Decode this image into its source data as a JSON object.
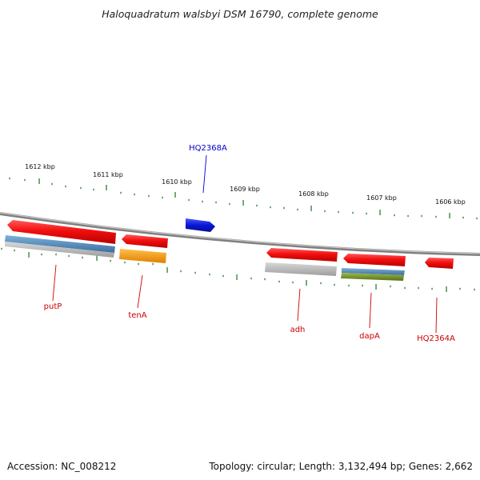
{
  "title": "Haloquadratum walsbyi DSM 16790, complete genome",
  "footer": {
    "accession": "Accession: NC_008212",
    "summary": "Topology: circular; Length: 3,132,494 bp; Genes: 2,662"
  },
  "scale": {
    "labels": [
      "1612 kbp",
      "1611 kbp",
      "1610 kbp",
      "1609 kbp",
      "1608 kbp",
      "1607 kbp",
      "1606 kbp"
    ],
    "tick_color": "#2e7d32"
  },
  "colors": {
    "backbone": "#8a8a8a",
    "gene_red": "#ee1111",
    "gene_blue": "#0a16d8",
    "label_red": "#cc0000",
    "label_blue": "#0000cc",
    "steel_blue": "#4f87b8",
    "grey": "#b9b9b9",
    "orange": "#f59a12",
    "olive": "#6f8f24"
  },
  "genes": [
    {
      "label": "putP",
      "strand": "reverse",
      "color": "red",
      "annotations": [
        "steel_blue",
        "grey"
      ]
    },
    {
      "label": "tenA",
      "strand": "reverse",
      "color": "red",
      "annotations": [
        "orange"
      ]
    },
    {
      "label": "HQ2368A",
      "strand": "forward",
      "color": "blue",
      "annotations": []
    },
    {
      "label": "adh",
      "strand": "reverse",
      "color": "red",
      "annotations": [
        "grey"
      ]
    },
    {
      "label": "dapA",
      "strand": "reverse",
      "color": "red",
      "annotations": [
        "steel_blue",
        "olive"
      ]
    },
    {
      "label": "HQ2364A",
      "strand": "reverse",
      "color": "red",
      "annotations": []
    }
  ]
}
